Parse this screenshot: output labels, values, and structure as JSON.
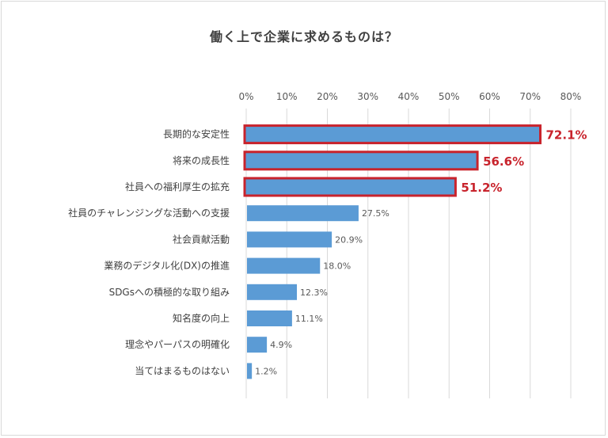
{
  "chart_data": {
    "type": "bar",
    "orientation": "horizontal",
    "title": "働く上で企業に求めるものは？",
    "xlabel": "",
    "ylabel": "",
    "xlim": [
      0,
      80
    ],
    "ticks": [
      "0%",
      "10%",
      "20%",
      "30%",
      "40%",
      "50%",
      "60%",
      "70%",
      "80%"
    ],
    "grid": true,
    "categories": [
      "長期的な安定性",
      "将来の成長性",
      "社員への福利厚生の拡充",
      "社員のチャレンジングな活動への支援",
      "社会貢献活動",
      "業務のデジタル化(DX)の推進",
      "SDGsへの積極的な取り組み",
      "知名度の向上",
      "理念やパーパスの明確化",
      "当てはまるものはない"
    ],
    "values": [
      72.1,
      56.6,
      51.2,
      27.5,
      20.9,
      18.0,
      12.3,
      11.1,
      4.9,
      1.2
    ],
    "labels": [
      "72.1%",
      "56.6%",
      "51.2%",
      "27.5%",
      "20.9%",
      "18.0%",
      "12.3%",
      "11.1%",
      "4.9%",
      "1.2%"
    ],
    "highlighted": [
      true,
      true,
      true,
      false,
      false,
      false,
      false,
      false,
      false,
      false
    ],
    "colors": {
      "bar": "#5b9bd5",
      "highlight": "#c8232c",
      "grid": "#d9d9d9"
    }
  }
}
